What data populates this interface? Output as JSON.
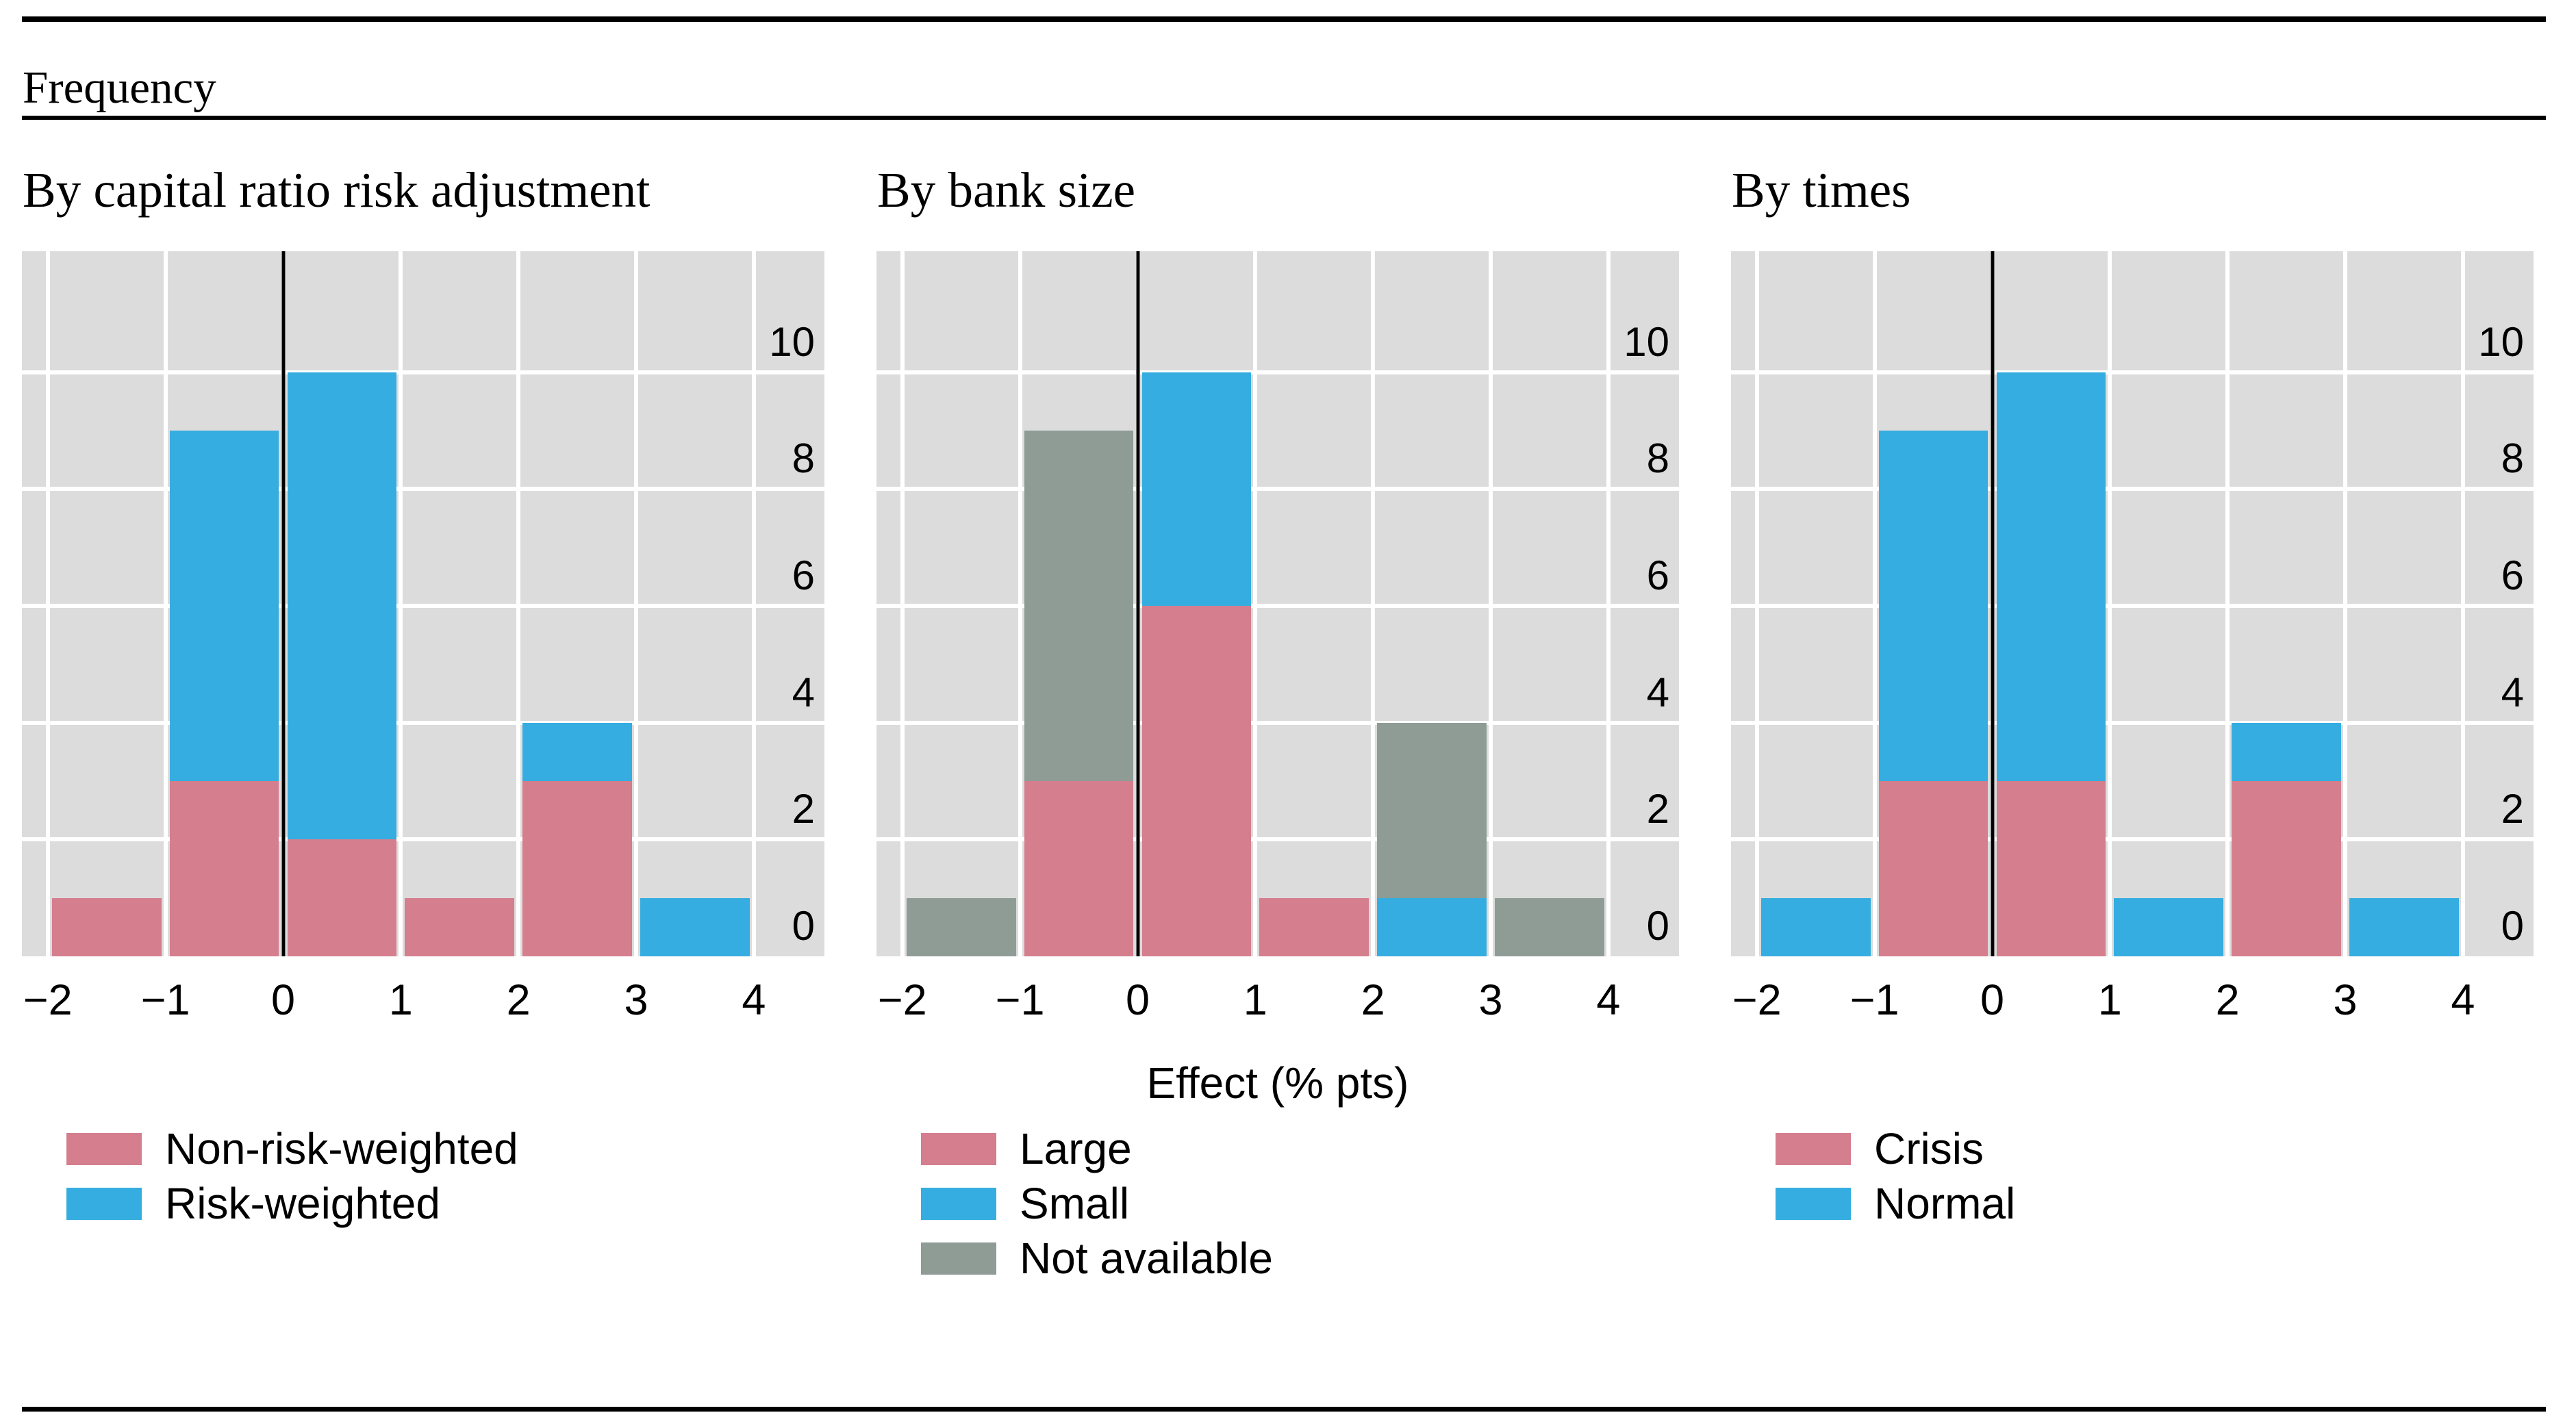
{
  "header": {
    "title": "Frequency"
  },
  "colors": {
    "pink": "#d47e8e",
    "blue": "#35ade0",
    "gray": "#8f9c96",
    "plot_background": "#dcdcdc",
    "rule": "#000000",
    "text": "#000000"
  },
  "x_axis": {
    "label": "Effect (% pts)",
    "tick_values": [
      -2,
      -1,
      0,
      1,
      2,
      3,
      4
    ],
    "tick_labels": [
      "−2",
      "−1",
      "0",
      "1",
      "2",
      "3",
      "4"
    ]
  },
  "y_axis": {
    "tick_values": [
      0,
      2,
      4,
      6,
      8,
      10
    ],
    "tick_labels": [
      "0",
      "2",
      "4",
      "6",
      "8",
      "10"
    ]
  },
  "chart_data": [
    {
      "type": "bar",
      "subtype": "stacked-histogram",
      "title": "By capital ratio risk adjustment",
      "bin_edges": [
        -2,
        -1,
        0,
        1,
        2,
        3,
        4
      ],
      "series": [
        {
          "name": "Non-risk-weighted",
          "color": "#d47e8e",
          "values": [
            1,
            3,
            2,
            1,
            3,
            0
          ]
        },
        {
          "name": "Risk-weighted",
          "color": "#35ade0",
          "values": [
            0,
            6,
            8,
            0,
            1,
            1
          ]
        }
      ],
      "xlim": [
        -2.22,
        4.6
      ],
      "ylim": [
        0,
        12.07
      ],
      "x_gridlines": [
        -2,
        -1,
        0,
        1,
        2,
        3,
        4
      ],
      "y_gridlines": [
        2,
        4,
        6,
        8,
        10
      ],
      "zero_line_x": 0,
      "legend_position": "below-left",
      "grid": true
    },
    {
      "type": "bar",
      "subtype": "stacked-histogram",
      "title": "By bank size",
      "bin_edges": [
        -2,
        -1,
        0,
        1,
        2,
        3,
        4
      ],
      "series": [
        {
          "name": "Large",
          "color": "#d47e8e",
          "values": [
            0,
            3,
            6,
            1,
            0,
            0
          ]
        },
        {
          "name": "Small",
          "color": "#35ade0",
          "values": [
            0,
            0,
            4,
            0,
            1,
            0
          ]
        },
        {
          "name": "Not available",
          "color": "#8f9c96",
          "values": [
            1,
            6,
            0,
            0,
            3,
            1
          ]
        }
      ],
      "xlim": [
        -2.22,
        4.6
      ],
      "ylim": [
        0,
        12.07
      ],
      "x_gridlines": [
        -2,
        -1,
        0,
        1,
        2,
        3,
        4
      ],
      "y_gridlines": [
        2,
        4,
        6,
        8,
        10
      ],
      "zero_line_x": 0,
      "legend_position": "below-left",
      "grid": true
    },
    {
      "type": "bar",
      "subtype": "stacked-histogram",
      "title": "By times",
      "bin_edges": [
        -2,
        -1,
        0,
        1,
        2,
        3,
        4
      ],
      "series": [
        {
          "name": "Crisis",
          "color": "#d47e8e",
          "values": [
            0,
            3,
            3,
            0,
            3,
            0
          ]
        },
        {
          "name": "Normal",
          "color": "#35ade0",
          "values": [
            1,
            6,
            7,
            1,
            1,
            1
          ]
        }
      ],
      "xlim": [
        -2.22,
        4.6
      ],
      "ylim": [
        0,
        12.07
      ],
      "x_gridlines": [
        -2,
        -1,
        0,
        1,
        2,
        3,
        4
      ],
      "y_gridlines": [
        2,
        4,
        6,
        8,
        10
      ],
      "zero_line_x": 0,
      "legend_position": "below-left",
      "grid": true
    }
  ]
}
